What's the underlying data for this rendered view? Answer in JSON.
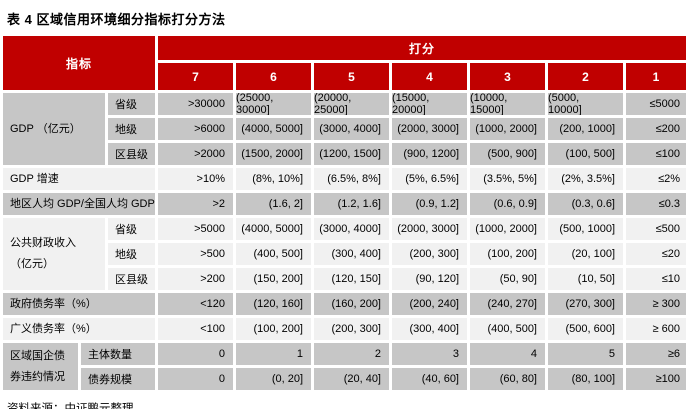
{
  "title": "表 4 区域信用环境细分指标打分方法",
  "source": "资料来源：中证鹏元整理",
  "colors": {
    "header_red": "#C00000",
    "row_dark": "#C6C6C6",
    "row_light": "#F1F1F1"
  },
  "table": {
    "header": {
      "indicator": "指标",
      "score": "打分",
      "levels": [
        "7",
        "6",
        "5",
        "4",
        "3",
        "2",
        "1"
      ]
    },
    "groups": [
      {
        "label": "GDP （亿元）",
        "shade": "dark",
        "rows": [
          {
            "sub": "省级",
            "values": [
              ">30000",
              "(25000, 30000]",
              "(20000, 25000]",
              "(15000, 20000]",
              "(10000, 15000]",
              "(5000, 10000]",
              "≤5000"
            ]
          },
          {
            "sub": "地级",
            "values": [
              ">6000",
              "(4000, 5000]",
              "(3000, 4000]",
              "(2000, 3000]",
              "(1000, 2000]",
              "(200, 1000]",
              "≤200"
            ]
          },
          {
            "sub": "区县级",
            "values": [
              ">2000",
              "(1500, 2000]",
              "(1200, 1500]",
              "(900, 1200]",
              "(500, 900]",
              "(100, 500]",
              "≤100"
            ]
          }
        ]
      },
      {
        "label": "GDP 增速",
        "shade": "light",
        "rows": [
          {
            "sub": null,
            "values": [
              ">10%",
              "(8%, 10%]",
              "(6.5%, 8%]",
              "(5%, 6.5%]",
              "(3.5%, 5%]",
              "(2%, 3.5%]",
              "≤2%"
            ]
          }
        ]
      },
      {
        "label": "地区人均 GDP/全国人均 GDP",
        "shade": "dark",
        "rows": [
          {
            "sub": null,
            "values": [
              ">2",
              "(1.6, 2]",
              "(1.2, 1.6]",
              "(0.9, 1.2]",
              "(0.6, 0.9]",
              "(0.3, 0.6]",
              "≤0.3"
            ]
          }
        ]
      },
      {
        "label": "公共财政收入\n（亿元）",
        "shade": "light",
        "rows": [
          {
            "sub": "省级",
            "values": [
              ">5000",
              "(4000, 5000]",
              "(3000, 4000]",
              "(2000, 3000]",
              "(1000, 2000]",
              "(500, 1000]",
              "≤500"
            ]
          },
          {
            "sub": "地级",
            "values": [
              ">500",
              "(400, 500]",
              "(300, 400]",
              "(200, 300]",
              "(100, 200]",
              "(20, 100]",
              "≤20"
            ]
          },
          {
            "sub": "区县级",
            "values": [
              ">200",
              "(150, 200]",
              "(120, 150]",
              "(90, 120]",
              "(50, 90]",
              "(10, 50]",
              "≤10"
            ]
          }
        ]
      },
      {
        "label": "政府债务率（%）",
        "shade": "dark",
        "rows": [
          {
            "sub": null,
            "values": [
              "<120",
              "(120, 160]",
              "(160, 200]",
              "(200, 240]",
              "(240, 270]",
              "(270, 300]",
              "≥ 300"
            ]
          }
        ]
      },
      {
        "label": "广义债务率（%）",
        "shade": "light",
        "rows": [
          {
            "sub": null,
            "values": [
              "<100",
              "(100, 200]",
              "(200, 300]",
              "(300, 400]",
              "(400, 500]",
              "(500, 600]",
              "≥ 600"
            ]
          }
        ]
      },
      {
        "label": "区域国企债\n券违约情况",
        "shade": "dark",
        "rows": [
          {
            "sub": "主体数量",
            "values": [
              "0",
              "1",
              "2",
              "3",
              "4",
              "5",
              "≥6"
            ]
          },
          {
            "sub": "债券规模",
            "values": [
              "0",
              "(0, 20]",
              "(20, 40]",
              "(40, 60]",
              "(60, 80]",
              "(80, 100]",
              "≥100"
            ]
          }
        ]
      }
    ]
  }
}
